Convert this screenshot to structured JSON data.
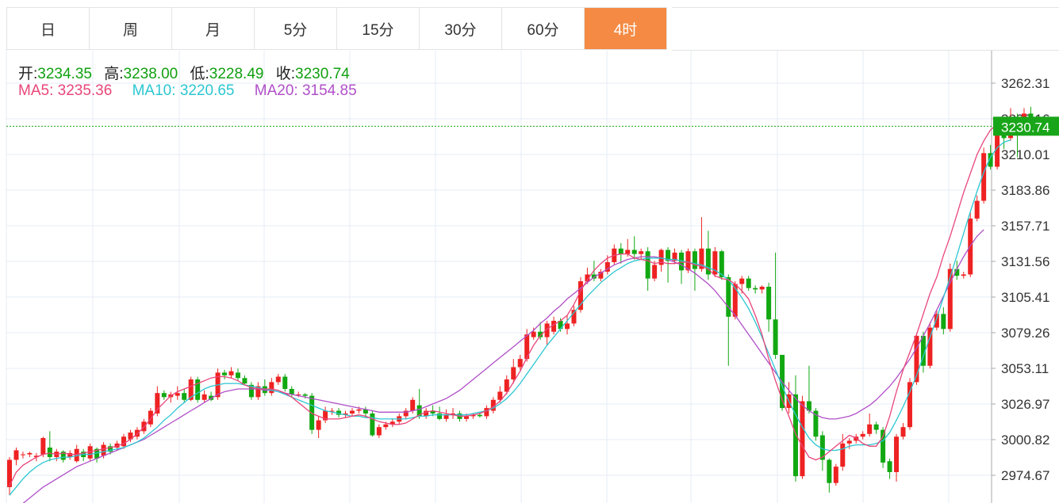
{
  "tabs": [
    {
      "label": "日"
    },
    {
      "label": "周"
    },
    {
      "label": "月"
    },
    {
      "label": "5分"
    },
    {
      "label": "15分"
    },
    {
      "label": "30分"
    },
    {
      "label": "60分"
    },
    {
      "label": "4时",
      "active": true
    }
  ],
  "ohlc": {
    "open_label": "开:",
    "open": "3234.35",
    "high_label": "高:",
    "high": "3238.00",
    "low_label": "低:",
    "low": "3228.49",
    "close_label": "收:",
    "close": "3230.74"
  },
  "ma": {
    "ma5_label": "MA5:",
    "ma5": "3235.36",
    "ma10_label": "MA10:",
    "ma10": "3220.65",
    "ma20_label": "MA20:",
    "ma20": "3154.85"
  },
  "price_tag": "3230.74",
  "colors": {
    "up": "#ee2222",
    "down": "#12a812",
    "active_tab": "#f48a43",
    "ma5": "#e8457a",
    "ma10": "#2cc6d2",
    "ma20": "#b04fc8"
  },
  "chart_data": {
    "type": "candlestick",
    "y_ticks": [
      3262.31,
      3236.16,
      3210.01,
      3183.86,
      3157.71,
      3131.56,
      3105.41,
      3079.26,
      3053.11,
      3026.97,
      3000.82,
      2974.67
    ],
    "y_tick_labels": [
      "3262.31",
      "3236.16",
      "3210.01",
      "3183.86",
      "3157.71",
      "3131.56",
      "3105.41",
      "3079.26",
      "3053.11",
      "3026.97",
      "3000.82",
      "2974.67"
    ],
    "ylim": [
      2958,
      3287
    ],
    "current_price": 3230.74,
    "grid": true,
    "candles": [
      [
        2966,
        2986,
        2960,
        2988
      ],
      [
        2986,
        2993,
        2982,
        2995
      ],
      [
        2990,
        2990,
        2987,
        2992
      ],
      [
        2990,
        2991,
        2988,
        2992
      ],
      [
        2988,
        2989,
        2985,
        2991
      ],
      [
        2990,
        3002,
        2988,
        3003
      ],
      [
        2995,
        2988,
        2985,
        3007
      ],
      [
        2988,
        2992,
        2985,
        2994
      ],
      [
        2992,
        2986,
        2984,
        2993
      ],
      [
        2988,
        2991,
        2986,
        2993
      ],
      [
        2985,
        2994,
        2984,
        2997
      ],
      [
        2992,
        2988,
        2985,
        2994
      ],
      [
        2987,
        2996,
        2985,
        2998
      ],
      [
        2994,
        2987,
        2984,
        2995
      ],
      [
        2989,
        2997,
        2987,
        2999
      ],
      [
        2996,
        2992,
        2990,
        2998
      ],
      [
        2995,
        2998,
        2993,
        3000
      ],
      [
        2996,
        3003,
        2994,
        3005
      ],
      [
        3001,
        3006,
        2999,
        3008
      ],
      [
        3003,
        3008,
        3001,
        3010
      ],
      [
        3007,
        3014,
        3005,
        3016
      ],
      [
        3012,
        3022,
        3010,
        3024
      ],
      [
        3020,
        3035,
        3018,
        3040
      ],
      [
        3035,
        3032,
        3030,
        3037
      ],
      [
        3032,
        3034,
        3028,
        3036
      ],
      [
        3033,
        3035,
        3030,
        3040
      ],
      [
        3035,
        3030,
        3028,
        3038
      ],
      [
        3030,
        3045,
        3029,
        3047
      ],
      [
        3045,
        3030,
        3028,
        3047
      ],
      [
        3030,
        3034,
        3028,
        3037
      ],
      [
        3033,
        3030,
        3029,
        3036
      ],
      [
        3032,
        3050,
        3030,
        3053
      ],
      [
        3050,
        3048,
        3045,
        3052
      ],
      [
        3048,
        3051,
        3046,
        3054
      ],
      [
        3050,
        3046,
        3044,
        3053
      ],
      [
        3046,
        3042,
        3041,
        3048
      ],
      [
        3041,
        3032,
        3030,
        3043
      ],
      [
        3032,
        3040,
        3030,
        3043
      ],
      [
        3040,
        3035,
        3033,
        3045
      ],
      [
        3035,
        3043,
        3033,
        3046
      ],
      [
        3043,
        3047,
        3041,
        3049
      ],
      [
        3047,
        3038,
        3036,
        3049
      ],
      [
        3038,
        3034,
        3032,
        3040
      ],
      [
        3034,
        3034,
        3032,
        3036
      ],
      [
        3034,
        3033,
        3031,
        3035
      ],
      [
        3033,
        3008,
        3005,
        3035
      ],
      [
        3008,
        3015,
        3002,
        3018
      ],
      [
        3015,
        3022,
        3013,
        3025
      ],
      [
        3022,
        3022,
        3019,
        3024
      ],
      [
        3022,
        3019,
        3017,
        3024
      ],
      [
        3019,
        3020,
        3017,
        3022
      ],
      [
        3020,
        3022,
        3018,
        3024
      ],
      [
        3022,
        3023,
        3020,
        3025
      ],
      [
        3023,
        3020,
        3017,
        3025
      ],
      [
        3020,
        3004,
        3003,
        3022
      ],
      [
        3004,
        3010,
        3002,
        3012
      ],
      [
        3010,
        3012,
        3008,
        3014
      ],
      [
        3012,
        3014,
        3010,
        3016
      ],
      [
        3014,
        3018,
        3012,
        3020
      ],
      [
        3018,
        3022,
        3016,
        3024
      ],
      [
        3022,
        3030,
        3020,
        3032
      ],
      [
        3026,
        3018,
        3016,
        3038
      ],
      [
        3018,
        3022,
        3016,
        3024
      ],
      [
        3022,
        3020,
        3018,
        3026
      ],
      [
        3020,
        3016,
        3015,
        3025
      ],
      [
        3016,
        3019,
        3014,
        3023
      ],
      [
        3019,
        3020,
        3016,
        3024
      ],
      [
        3020,
        3016,
        3014,
        3022
      ],
      [
        3016,
        3018,
        3014,
        3020
      ],
      [
        3018,
        3019,
        3016,
        3020
      ],
      [
        3019,
        3018,
        3017,
        3021
      ],
      [
        3018,
        3024,
        3016,
        3026
      ],
      [
        3022,
        3030,
        3020,
        3032
      ],
      [
        3030,
        3036,
        3028,
        3040
      ],
      [
        3036,
        3045,
        3034,
        3048
      ],
      [
        3045,
        3054,
        3042,
        3060
      ],
      [
        3054,
        3060,
        3052,
        3063
      ],
      [
        3060,
        3078,
        3058,
        3082
      ],
      [
        3076,
        3080,
        3074,
        3083
      ],
      [
        3080,
        3076,
        3074,
        3087
      ],
      [
        3076,
        3086,
        3070,
        3088
      ],
      [
        3080,
        3088,
        3078,
        3091
      ],
      [
        3088,
        3082,
        3080,
        3090
      ],
      [
        3082,
        3086,
        3078,
        3092
      ],
      [
        3086,
        3096,
        3084,
        3099
      ],
      [
        3096,
        3117,
        3094,
        3120
      ],
      [
        3117,
        3122,
        3115,
        3127
      ],
      [
        3122,
        3119,
        3117,
        3132
      ],
      [
        3119,
        3124,
        3117,
        3126
      ],
      [
        3124,
        3131,
        3122,
        3136
      ],
      [
        3131,
        3141,
        3129,
        3144
      ],
      [
        3141,
        3137,
        3130,
        3145
      ],
      [
        3137,
        3140,
        3135,
        3148
      ],
      [
        3140,
        3137,
        3133,
        3150
      ],
      [
        3137,
        3139,
        3133,
        3141
      ],
      [
        3139,
        3119,
        3110,
        3142
      ],
      [
        3119,
        3129,
        3117,
        3132
      ],
      [
        3129,
        3140,
        3124,
        3141
      ],
      [
        3140,
        3132,
        3116,
        3142
      ],
      [
        3132,
        3138,
        3130,
        3141
      ],
      [
        3138,
        3125,
        3115,
        3140
      ],
      [
        3125,
        3139,
        3123,
        3141
      ],
      [
        3139,
        3126,
        3110,
        3141
      ],
      [
        3126,
        3141,
        3124,
        3164
      ],
      [
        3141,
        3122,
        3118,
        3154
      ],
      [
        3122,
        3139,
        3120,
        3142
      ],
      [
        3139,
        3120,
        3118,
        3140
      ],
      [
        3120,
        3091,
        3055,
        3122
      ],
      [
        3091,
        3115,
        3089,
        3117
      ],
      [
        3115,
        3119,
        3108,
        3121
      ],
      [
        3119,
        3112,
        3110,
        3121
      ],
      [
        3112,
        3111,
        3108,
        3114
      ],
      [
        3111,
        3113,
        3108,
        3114
      ],
      [
        3113,
        3089,
        3080,
        3116
      ],
      [
        3089,
        3063,
        3060,
        3138
      ],
      [
        3063,
        3024,
        3022,
        3063
      ],
      [
        3024,
        3034,
        3020,
        3043
      ],
      [
        3034,
        2974,
        2970,
        3048
      ],
      [
        2974,
        3029,
        2972,
        3033
      ],
      [
        3029,
        3022,
        3020,
        3055
      ],
      [
        3022,
        3003,
        3000,
        3024
      ],
      [
        3004,
        2986,
        2978,
        3007
      ],
      [
        2986,
        2969,
        2962,
        2987
      ],
      [
        2969,
        2981,
        2967,
        2983
      ],
      [
        2981,
        2998,
        2978,
        3005
      ],
      [
        2998,
        3000,
        2994,
        3002
      ],
      [
        3000,
        3003,
        2998,
        3005
      ],
      [
        3003,
        3005,
        3001,
        3007
      ],
      [
        3005,
        3012,
        3003,
        3020
      ],
      [
        3012,
        3008,
        3005,
        3014
      ],
      [
        3008,
        2984,
        2980,
        3010
      ],
      [
        2985,
        2977,
        2972,
        2987
      ],
      [
        2977,
        3003,
        2970,
        3005
      ],
      [
        3003,
        3010,
        3001,
        3013
      ],
      [
        3010,
        3043,
        3008,
        3046
      ],
      [
        3043,
        3077,
        3041,
        3079
      ],
      [
        3077,
        3055,
        3050,
        3080
      ],
      [
        3055,
        3083,
        3053,
        3087
      ],
      [
        3083,
        3093,
        3081,
        3096
      ],
      [
        3093,
        3082,
        3078,
        3098
      ],
      [
        3082,
        3126,
        3080,
        3130
      ],
      [
        3126,
        3121,
        3118,
        3132
      ],
      [
        3121,
        3122,
        3119,
        3124
      ],
      [
        3122,
        3163,
        3120,
        3168
      ],
      [
        3163,
        3176,
        3161,
        3180
      ],
      [
        3176,
        3211,
        3174,
        3215
      ],
      [
        3211,
        3201,
        3199,
        3217
      ],
      [
        3201,
        3228,
        3199,
        3232
      ],
      [
        3228,
        3222,
        3214,
        3230
      ],
      [
        3222,
        3236,
        3220,
        3244
      ],
      [
        3236,
        3232,
        3208,
        3240
      ],
      [
        3232,
        3240,
        3228,
        3244
      ],
      [
        3240,
        3236,
        3232,
        3245
      ],
      [
        3234.35,
        3230.74,
        3228.49,
        3238.0
      ]
    ],
    "ma5": [
      2967,
      2977,
      2982,
      2985,
      2988,
      2990,
      2991,
      2990,
      2991,
      2990,
      2990,
      2991,
      2992,
      2993,
      2994,
      2995,
      2996,
      2998,
      3001,
      3005,
      3010,
      3016,
      3023,
      3028,
      3033,
      3036,
      3038,
      3040,
      3042,
      3044,
      3046,
      3047,
      3047,
      3046,
      3044,
      3041,
      3039,
      3038,
      3038,
      3038,
      3037,
      3035,
      3032,
      3028,
      3024,
      3020,
      3018,
      3016,
      3016,
      3016,
      3017,
      3018,
      3019,
      3018,
      3016,
      3014,
      3013,
      3012,
      3012,
      3013,
      3016,
      3019,
      3021,
      3022,
      3021,
      3020,
      3019,
      3018,
      3018,
      3019,
      3020,
      3022,
      3025,
      3029,
      3035,
      3043,
      3051,
      3061,
      3070,
      3077,
      3082,
      3085,
      3088,
      3092,
      3100,
      3110,
      3118,
      3125,
      3130,
      3134,
      3136,
      3137,
      3137,
      3134,
      3133,
      3132,
      3130,
      3131,
      3130,
      3130,
      3131,
      3131,
      3129,
      3128,
      3126,
      3121,
      3119,
      3118,
      3115,
      3110,
      3104,
      3092,
      3078,
      3060,
      3044,
      3030,
      3018,
      3005,
      2996,
      2988,
      2986,
      2988,
      2992,
      2996,
      3000,
      3004,
      3002,
      2998,
      2996,
      2996,
      3003,
      3018,
      3036,
      3052,
      3065,
      3078,
      3093,
      3108,
      3120,
      3136,
      3150,
      3166,
      3182,
      3196,
      3210,
      3220,
      3228,
      3232,
      3235,
      3235.36
    ],
    "ma10": [
      2960,
      2966,
      2972,
      2977,
      2981,
      2984,
      2986,
      2987,
      2988,
      2988,
      2989,
      2990,
      2990,
      2991,
      2992,
      2993,
      2994,
      2995,
      2997,
      2999,
      3002,
      3006,
      3010,
      3015,
      3019,
      3024,
      3028,
      3032,
      3035,
      3038,
      3040,
      3041,
      3042,
      3042,
      3042,
      3041,
      3040,
      3039,
      3038,
      3037,
      3036,
      3034,
      3032,
      3030,
      3028,
      3026,
      3024,
      3022,
      3021,
      3020,
      3019,
      3018,
      3018,
      3017,
      3017,
      3016,
      3016,
      3016,
      3016,
      3016,
      3017,
      3018,
      3018,
      3019,
      3019,
      3019,
      3019,
      3019,
      3019,
      3020,
      3021,
      3022,
      3024,
      3027,
      3031,
      3036,
      3042,
      3049,
      3056,
      3063,
      3070,
      3076,
      3082,
      3088,
      3094,
      3100,
      3106,
      3111,
      3116,
      3120,
      3124,
      3127,
      3130,
      3132,
      3133,
      3134,
      3134,
      3134,
      3133,
      3133,
      3132,
      3131,
      3130,
      3129,
      3127,
      3125,
      3122,
      3118,
      3112,
      3105,
      3097,
      3087,
      3076,
      3064,
      3052,
      3040,
      3029,
      3019,
      3010,
      3002,
      2997,
      2994,
      2993,
      2993,
      2994,
      2996,
      2997,
      2997,
      2997,
      2998,
      3000,
      3006,
      3015,
      3025,
      3036,
      3048,
      3062,
      3076,
      3090,
      3105,
      3120,
      3136,
      3152,
      3168,
      3183,
      3197,
      3208,
      3215,
      3219,
      3220.65
    ],
    "ma20": [
      2946,
      2950,
      2954,
      2958,
      2962,
      2966,
      2969,
      2972,
      2975,
      2978,
      2981,
      2983,
      2985,
      2987,
      2989,
      2991,
      2993,
      2995,
      2997,
      2999,
      3001,
      3004,
      3007,
      3010,
      3013,
      3016,
      3019,
      3022,
      3025,
      3028,
      3031,
      3034,
      3036,
      3037,
      3038,
      3038,
      3038,
      3038,
      3037,
      3037,
      3036,
      3035,
      3034,
      3033,
      3032,
      3031,
      3030,
      3029,
      3028,
      3027,
      3026,
      3025,
      3024,
      3023,
      3022,
      3021,
      3021,
      3021,
      3021,
      3021,
      3022,
      3023,
      3025,
      3027,
      3029,
      3031,
      3034,
      3037,
      3041,
      3045,
      3049,
      3053,
      3057,
      3061,
      3065,
      3069,
      3073,
      3077,
      3081,
      3086,
      3090,
      3095,
      3099,
      3104,
      3108,
      3112,
      3116,
      3120,
      3123,
      3126,
      3129,
      3131,
      3133,
      3134,
      3135,
      3135,
      3135,
      3134,
      3133,
      3131,
      3129,
      3126,
      3123,
      3119,
      3115,
      3110,
      3104,
      3098,
      3092,
      3085,
      3078,
      3071,
      3064,
      3057,
      3050,
      3043,
      3037,
      3031,
      3026,
      3022,
      3019,
      3017,
      3016,
      3016,
      3017,
      3018,
      3020,
      3023,
      3026,
      3030,
      3035,
      3040,
      3046,
      3053,
      3060,
      3068,
      3077,
      3086,
      3096,
      3106,
      3116,
      3126,
      3135,
      3143,
      3150,
      3154.85
    ]
  }
}
